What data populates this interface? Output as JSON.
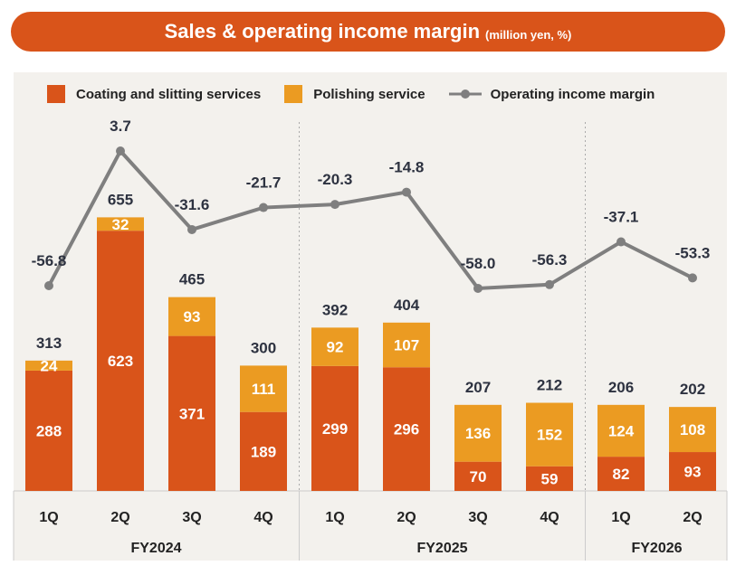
{
  "chart_data": {
    "type": "bar",
    "stacked": true,
    "title": "Sales & operating income margin",
    "subtitle": "(million yen, %)",
    "categories": [
      "1Q",
      "2Q",
      "3Q",
      "4Q",
      "1Q",
      "2Q",
      "3Q",
      "4Q",
      "1Q",
      "2Q"
    ],
    "groups": [
      {
        "label": "FY2024",
        "count": 4
      },
      {
        "label": "FY2025",
        "count": 4
      },
      {
        "label": "FY2026",
        "count": 2
      }
    ],
    "series": [
      {
        "name": "Coating and slitting services",
        "type": "bar",
        "color": "#d9541a",
        "values": [
          288,
          623,
          371,
          189,
          299,
          296,
          70,
          59,
          82,
          93
        ]
      },
      {
        "name": "Polishing service",
        "type": "bar",
        "color": "#eb9b22",
        "values": [
          24,
          32,
          93,
          111,
          92,
          107,
          136,
          152,
          124,
          108
        ]
      },
      {
        "name": "Operating income margin",
        "type": "line",
        "color": "#7f7f7f",
        "values": [
          -56.8,
          3.7,
          -31.6,
          -21.7,
          -20.3,
          -14.8,
          -58.0,
          -56.3,
          -37.1,
          -53.3
        ]
      }
    ],
    "totals": [
      313,
      655,
      465,
      300,
      392,
      404,
      207,
      212,
      206,
      202
    ],
    "legend_position": "top",
    "grid": false
  }
}
